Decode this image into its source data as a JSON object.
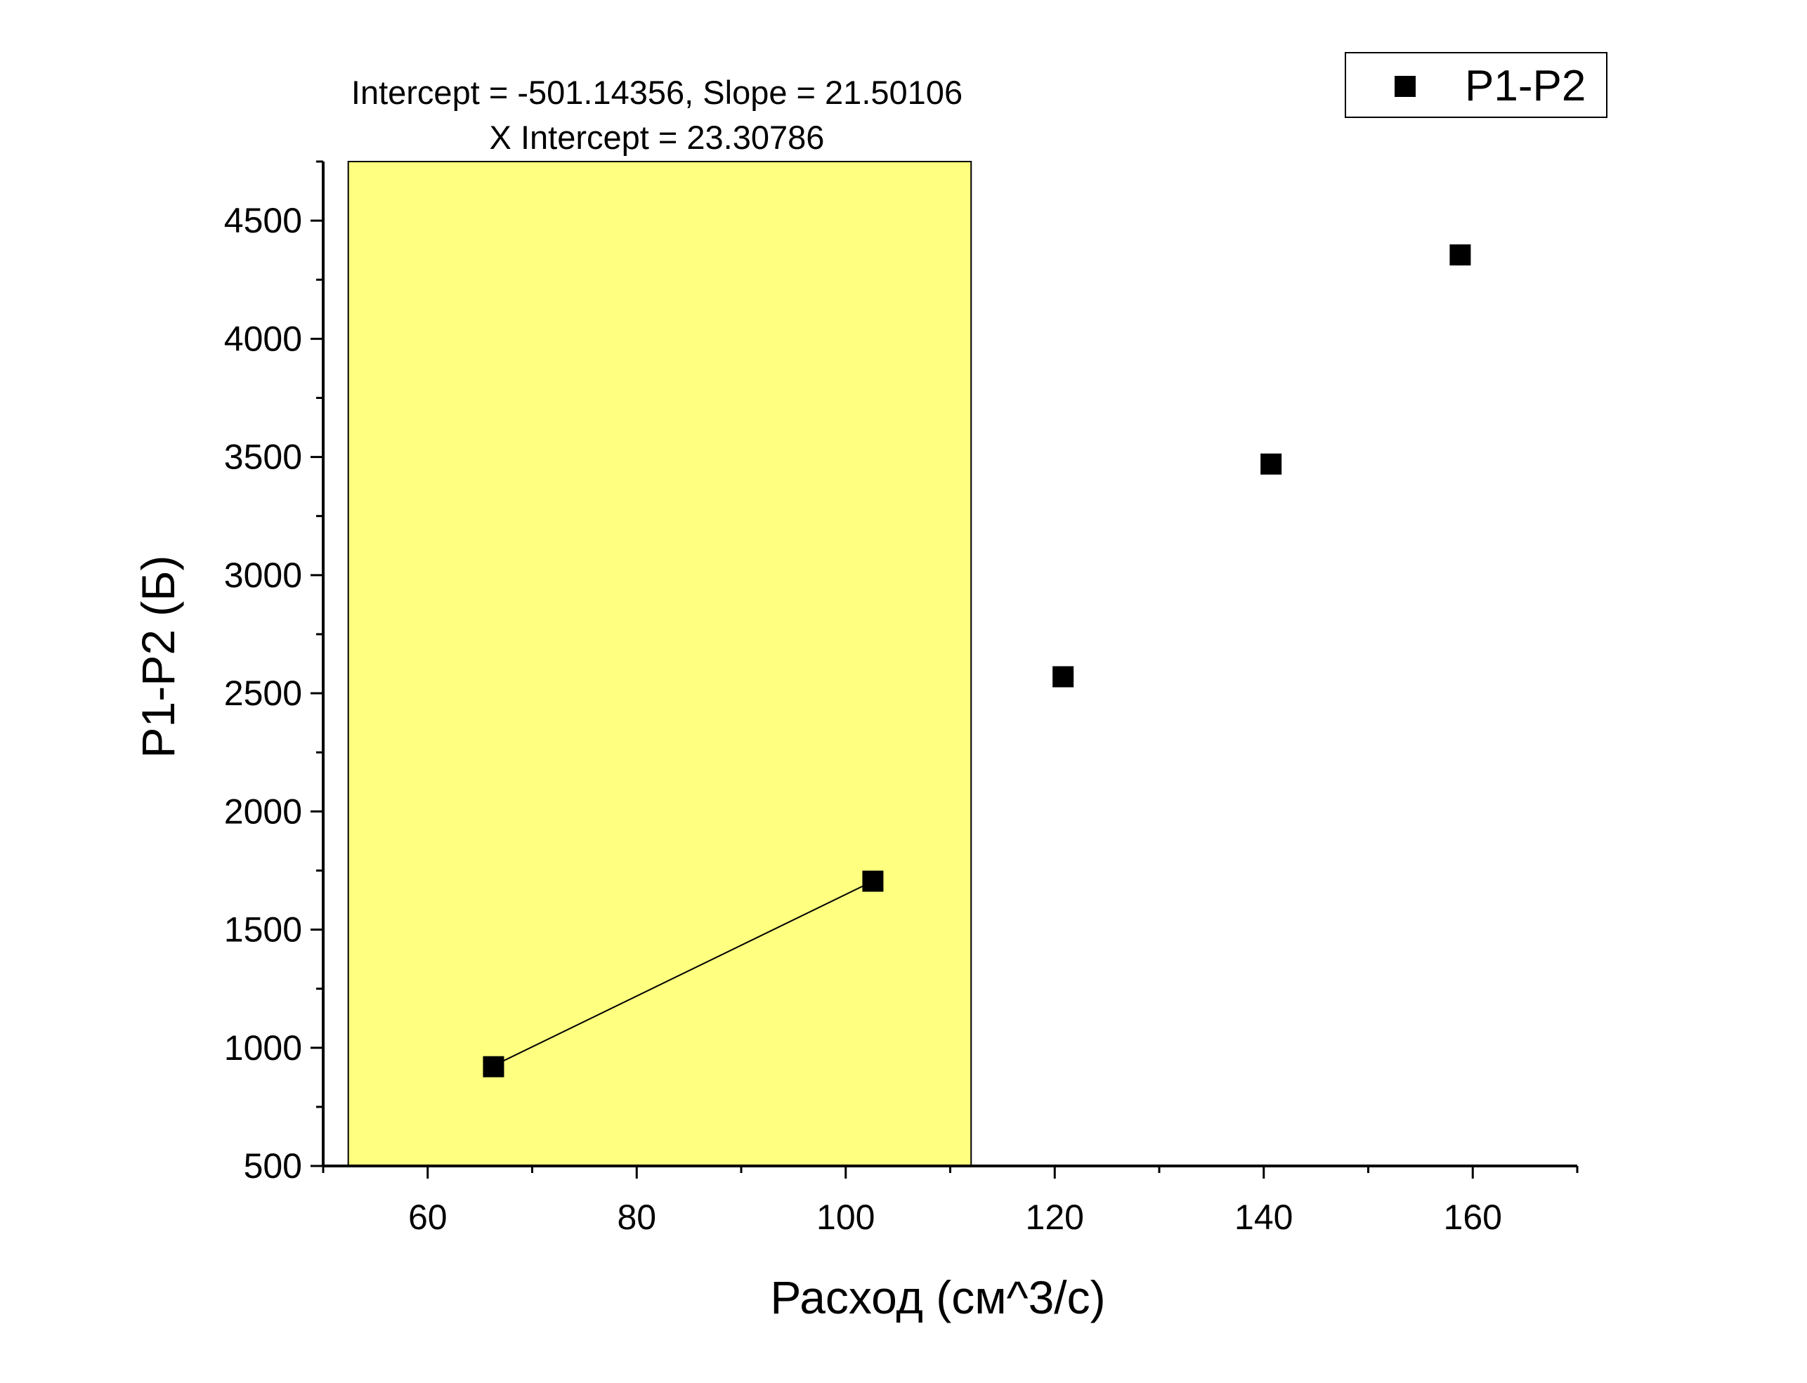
{
  "chart_data": {
    "type": "scatter",
    "xlabel": "Расход (см^3/с)",
    "ylabel": "P1-P2 (Б)",
    "xlim": [
      50,
      170
    ],
    "ylim": [
      500,
      4750
    ],
    "x_ticks": [
      60,
      80,
      100,
      120,
      140,
      160
    ],
    "y_ticks": [
      500,
      1000,
      1500,
      2000,
      2500,
      3000,
      3500,
      4000,
      4500
    ],
    "series": [
      {
        "name": "P1-P2",
        "color": "#000000",
        "marker": "square",
        "x": [
          66.3,
          102.6,
          120.8,
          140.7,
          158.8
        ],
        "y": [
          920,
          1705,
          2570,
          3470,
          4355
        ]
      }
    ],
    "fit": {
      "x_range": [
        66.3,
        102.6
      ],
      "intercept": -501.14356,
      "slope": 21.50106,
      "color": "#000000"
    },
    "highlight": {
      "x_range": [
        52.4,
        112.0
      ],
      "color": "#ffff80"
    },
    "annotation": {
      "line1": "Intercept = -501.14356, Slope = 21.50106",
      "line2": "X Intercept = 23.30786"
    },
    "legend": {
      "position": "top-right",
      "entries": [
        "P1-P2"
      ]
    },
    "grid": false
  }
}
